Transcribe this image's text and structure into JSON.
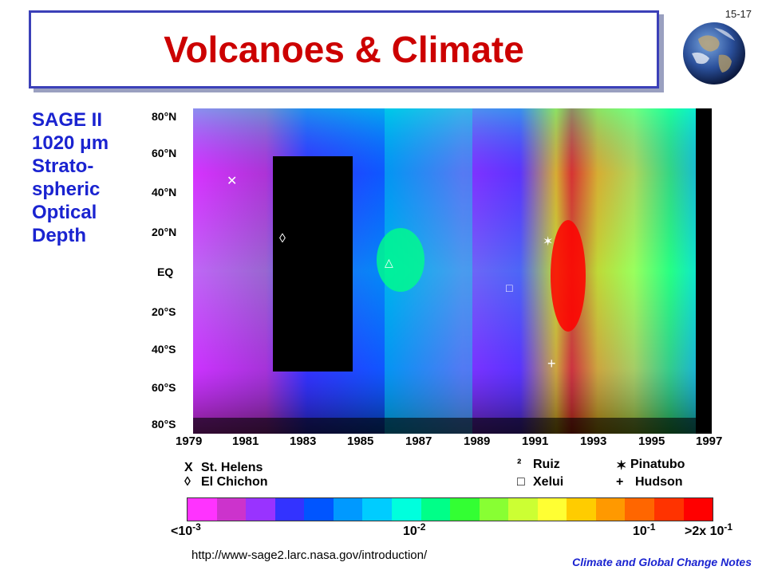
{
  "slide": {
    "title": "Volcanoes & Climate",
    "number": "15-17",
    "footer": "Climate and Global Change Notes",
    "url": "http://www-sage2.larc.nasa.gov/introduction/"
  },
  "side_label": [
    "SAGE II",
    "1020 μm",
    "Strato-",
    "spheric",
    "Optical",
    "Depth"
  ],
  "plot": {
    "latitudes": [
      "80°N",
      "60°N",
      "40°N",
      "20°N",
      "EQ",
      "20°S",
      "40°S",
      "60°S",
      "80°S"
    ],
    "years": [
      "1979",
      "1981",
      "1983",
      "1985",
      "1987",
      "1989",
      "1991",
      "1993",
      "1995",
      "1997"
    ],
    "volcanoes": [
      {
        "marker": "X",
        "name": "St. Helens"
      },
      {
        "marker": "◊",
        "name": "El Chichon"
      },
      {
        "marker": "²",
        "name": "Ruiz"
      },
      {
        "marker": "□",
        "name": "Xelui"
      },
      {
        "marker": "✶",
        "name": "Pinatubo"
      },
      {
        "marker": "+",
        "name": "Hudson"
      }
    ],
    "colorbar_colors": [
      "#ff33ff",
      "#cc33cc",
      "#9933ff",
      "#3333ff",
      "#0055ff",
      "#0099ff",
      "#00ccff",
      "#00ffdd",
      "#00ff88",
      "#33ff33",
      "#88ff33",
      "#ccff33",
      "#ffff33",
      "#ffcc00",
      "#ff9900",
      "#ff6600",
      "#ff3300",
      "#ff0000"
    ],
    "colorbar_labels": [
      {
        "base": "<10",
        "exp": "-3"
      },
      {
        "base": "10",
        "exp": "-2"
      },
      {
        "base": "10",
        "exp": "-1"
      },
      {
        "base": ">2x 10",
        "exp": "-1"
      }
    ]
  }
}
